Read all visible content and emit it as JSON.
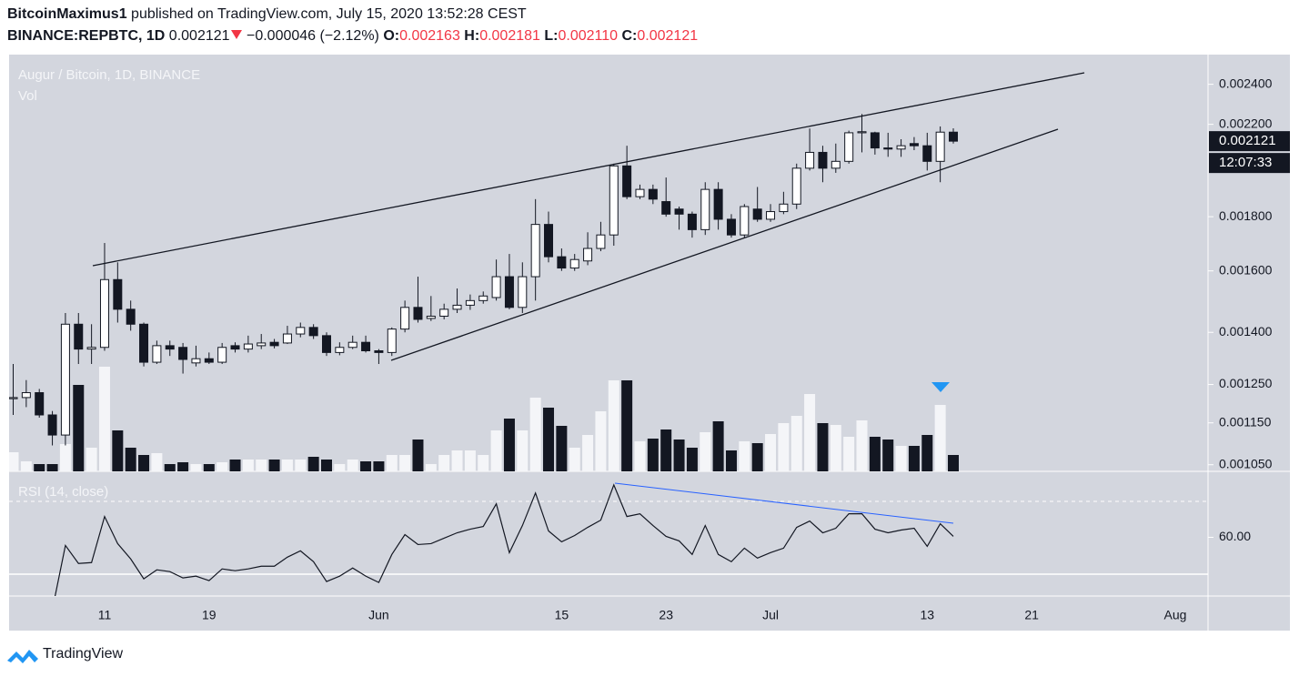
{
  "header": {
    "author": "BitcoinMaximus1",
    "published": "published on TradingView.com, July 15, 2020 13:52:28 CEST",
    "symbol": "BINANCE:REPBTC, 1D",
    "last": "0.002121",
    "change": "−0.000046 (−2.12%)",
    "ohlc": [
      {
        "label": "O:",
        "value": "0.002163"
      },
      {
        "label": "H:",
        "value": "0.002181"
      },
      {
        "label": "L:",
        "value": "0.002110"
      },
      {
        "label": "C:",
        "value": "0.002121"
      }
    ]
  },
  "chart_data": {
    "type": "candlestick",
    "title": "Augur / Bitcoin, 1D, BINANCE",
    "volume_label": "Vol",
    "log_scale": true,
    "up_color": "#ffffff",
    "down_color": "#131722",
    "volume_up_color": "#f4f5f8",
    "volume_down_color": "#131722",
    "countdown": "12:07:33",
    "categories": [
      null,
      null,
      null,
      null,
      null,
      null,
      null,
      "11",
      null,
      null,
      null,
      null,
      null,
      null,
      null,
      "19",
      null,
      null,
      null,
      null,
      null,
      null,
      null,
      null,
      null,
      null,
      null,
      null,
      "Jun",
      null,
      null,
      null,
      null,
      null,
      null,
      null,
      null,
      null,
      null,
      null,
      null,
      null,
      "15",
      null,
      null,
      null,
      null,
      null,
      null,
      null,
      "23",
      null,
      null,
      null,
      null,
      null,
      null,
      null,
      "Jul",
      null,
      null,
      null,
      null,
      null,
      null,
      null,
      null,
      null,
      null,
      null,
      "13",
      null,
      null,
      null,
      null,
      null,
      null,
      null,
      "21",
      null,
      null,
      null,
      null,
      null,
      null,
      null,
      null,
      null,
      null,
      "Aug"
    ],
    "open": [
      0.001212,
      0.001215,
      0.001228,
      0.00117,
      0.00112,
      0.001425,
      0.00135,
      0.001355,
      0.00157,
      0.001472,
      0.001425,
      0.001312,
      0.00136,
      0.001355,
      0.00131,
      0.001322,
      0.001312,
      0.00136,
      0.00135,
      0.00136,
      0.00137,
      0.001368,
      0.001395,
      0.001415,
      0.00139,
      0.00134,
      0.001355,
      0.00137,
      0.001345,
      0.00134,
      0.00141,
      0.001478,
      0.001443,
      0.00145,
      0.001472,
      0.001485,
      0.0015,
      0.00151,
      0.00158,
      0.001478,
      0.00158,
      0.00177,
      0.00165,
      0.00161,
      0.001635,
      0.00168,
      0.00173,
      0.00201,
      0.00188,
      0.00191,
      0.00186,
      0.00183,
      0.00181,
      0.00175,
      0.00191,
      0.00179,
      0.00173,
      0.00183,
      0.00179,
      0.00182,
      0.00185,
      0.002,
      0.00207,
      0.002,
      0.00203,
      0.00216,
      0.00216,
      0.00209,
      0.002085,
      0.00211,
      0.0021,
      0.00203,
      0.002163,
      null,
      null,
      null,
      null,
      null,
      null,
      null,
      null,
      null,
      null,
      null,
      null,
      null,
      null,
      null,
      null,
      null
    ],
    "high": [
      0.001307,
      0.001262,
      0.001238,
      0.00118,
      0.00146,
      0.00146,
      0.001425,
      0.0017,
      0.00163,
      0.0015,
      0.00143,
      0.001375,
      0.001375,
      0.001368,
      0.00136,
      0.00134,
      0.001368,
      0.00137,
      0.00139,
      0.001395,
      0.00138,
      0.00142,
      0.00143,
      0.001425,
      0.0014,
      0.00137,
      0.00139,
      0.00139,
      0.00135,
      0.001415,
      0.0015,
      0.00158,
      0.001515,
      0.00149,
      0.00154,
      0.00152,
      0.00153,
      0.00164,
      0.00166,
      0.00163,
      0.00187,
      0.00182,
      0.00168,
      0.00166,
      0.00174,
      0.00178,
      0.00202,
      0.0021,
      0.00193,
      0.00193,
      0.00196,
      0.00184,
      0.00182,
      0.00194,
      0.00194,
      0.00181,
      0.00185,
      0.00192,
      0.00185,
      0.0019,
      0.00202,
      0.00218,
      0.0021,
      0.00211,
      0.00217,
      0.00225,
      0.002165,
      0.00216,
      0.00213,
      0.00214,
      0.00216,
      0.00219,
      0.002181,
      null,
      null,
      null,
      null,
      null,
      null,
      null,
      null,
      null,
      null,
      null,
      null,
      null,
      null,
      null,
      null,
      null
    ],
    "low": [
      0.00117,
      0.00119,
      0.001163,
      0.001095,
      0.001095,
      0.001307,
      0.001307,
      0.001345,
      0.00143,
      0.001405,
      0.0013,
      0.001307,
      0.00133,
      0.00128,
      0.0013,
      0.001307,
      0.001307,
      0.00134,
      0.00134,
      0.00135,
      0.001352,
      0.001365,
      0.001385,
      0.00138,
      0.00133,
      0.001332,
      0.00135,
      0.00134,
      0.001307,
      0.00133,
      0.0014,
      0.00143,
      0.001435,
      0.00144,
      0.00146,
      0.00147,
      0.00149,
      0.0015,
      0.001472,
      0.00146,
      0.0015,
      0.00163,
      0.0016,
      0.0016,
      0.00162,
      0.00167,
      0.00169,
      0.00187,
      0.00187,
      0.00185,
      0.0018,
      0.00175,
      0.00172,
      0.00173,
      0.00175,
      0.00172,
      0.00172,
      0.00178,
      0.00178,
      0.00181,
      0.00183,
      0.00199,
      0.00194,
      0.00198,
      0.00202,
      0.00207,
      0.00206,
      0.00205,
      0.00205,
      0.00208,
      0.00199,
      0.00194,
      0.00211,
      null,
      null,
      null,
      null,
      null,
      null,
      null,
      null,
      null,
      null,
      null,
      null,
      null,
      null,
      null,
      null,
      null
    ],
    "close": [
      0.001215,
      0.001228,
      0.00117,
      0.00112,
      0.001425,
      0.00135,
      0.001355,
      0.00157,
      0.001472,
      0.001425,
      0.001312,
      0.00136,
      0.00135,
      0.00132,
      0.001322,
      0.001312,
      0.001355,
      0.00135,
      0.001365,
      0.001368,
      0.00136,
      0.001395,
      0.001415,
      0.00139,
      0.00134,
      0.001355,
      0.00137,
      0.001345,
      0.00134,
      0.00141,
      0.001478,
      0.00144,
      0.00145,
      0.001472,
      0.001485,
      0.0015,
      0.001515,
      0.00158,
      0.001478,
      0.00158,
      0.00177,
      0.00165,
      0.00161,
      0.00164,
      0.00168,
      0.00173,
      0.00201,
      0.00188,
      0.00191,
      0.00187,
      0.00181,
      0.00181,
      0.00175,
      0.00191,
      0.00179,
      0.00173,
      0.00184,
      0.00179,
      0.00182,
      0.00185,
      0.002,
      0.00207,
      0.002,
      0.00203,
      0.00216,
      0.002165,
      0.00209,
      0.002085,
      0.0021,
      0.0021,
      0.00203,
      0.002163,
      0.002121,
      null,
      null,
      null,
      null,
      null,
      null,
      null,
      null,
      null,
      null,
      null,
      null,
      null,
      null,
      null,
      null,
      null
    ],
    "volume": [
      21,
      11,
      8,
      8,
      30,
      95,
      26,
      115,
      45,
      26,
      18,
      20,
      8,
      10,
      8,
      8,
      10,
      13,
      13,
      13,
      13,
      13,
      13,
      16,
      13,
      8,
      13,
      11,
      11,
      18,
      18,
      35,
      8,
      18,
      23,
      23,
      18,
      45,
      58,
      45,
      81,
      70,
      50,
      26,
      40,
      66,
      100,
      100,
      33,
      36,
      46,
      35,
      26,
      43,
      55,
      23,
      33,
      31,
      41,
      53,
      61,
      85,
      53,
      51,
      38,
      56,
      38,
      35,
      28,
      28,
      40,
      73,
      18,
      null,
      null,
      null,
      null,
      null,
      null,
      null,
      null,
      null,
      null,
      null,
      null,
      null,
      null,
      null,
      null,
      null
    ],
    "ylim": [
      0.001035,
      0.00256
    ],
    "yticks": [
      {
        "value": 0.0024,
        "label": "0.002400"
      },
      {
        "value": 0.0022,
        "label": "0.002200"
      },
      {
        "value": 0.0018,
        "label": "0.001800"
      },
      {
        "value": 0.0016,
        "label": "0.001600"
      },
      {
        "value": 0.0014,
        "label": "0.001400"
      },
      {
        "value": 0.00125,
        "label": "0.001250"
      },
      {
        "value": 0.00115,
        "label": "0.001150"
      },
      {
        "value": 0.00105,
        "label": "0.001050"
      }
    ],
    "volume_ylim": [
      0,
      458
    ],
    "rsi": {
      "title": "RSI (14, close)",
      "color": "#131722",
      "ylim": [
        43.75,
        78.25
      ],
      "yticks": [
        {
          "value": 60,
          "label": "60.00"
        }
      ],
      "values": [
        null,
        null,
        null,
        40,
        57.75,
        52.75,
        53,
        65.75,
        58.25,
        54,
        48.5,
        51,
        50.5,
        48.75,
        49.25,
        48,
        51.25,
        50.75,
        51.25,
        52,
        52,
        54.5,
        56.25,
        53.25,
        47.75,
        49.25,
        51.5,
        49.25,
        47.5,
        55.25,
        60.75,
        58,
        58.25,
        59.75,
        61.25,
        62.25,
        63,
        69.25,
        55.75,
        63.25,
        72.25,
        61.75,
        58.75,
        60.5,
        62.75,
        64.75,
        74.5,
        65.75,
        66.5,
        63.25,
        60.25,
        59,
        55.25,
        63.25,
        55.25,
        53.25,
        57,
        54.25,
        55.75,
        57,
        62.75,
        64.5,
        61.25,
        62.5,
        66.5,
        66.5,
        62.25,
        61.25,
        62,
        62.5,
        57.5,
        63.75,
        60.25,
        null,
        null,
        null,
        null,
        null,
        null,
        null,
        null,
        null,
        null,
        null,
        null,
        null,
        null,
        null,
        null,
        null
      ]
    }
  },
  "footer": {
    "brand": "TradingView"
  }
}
